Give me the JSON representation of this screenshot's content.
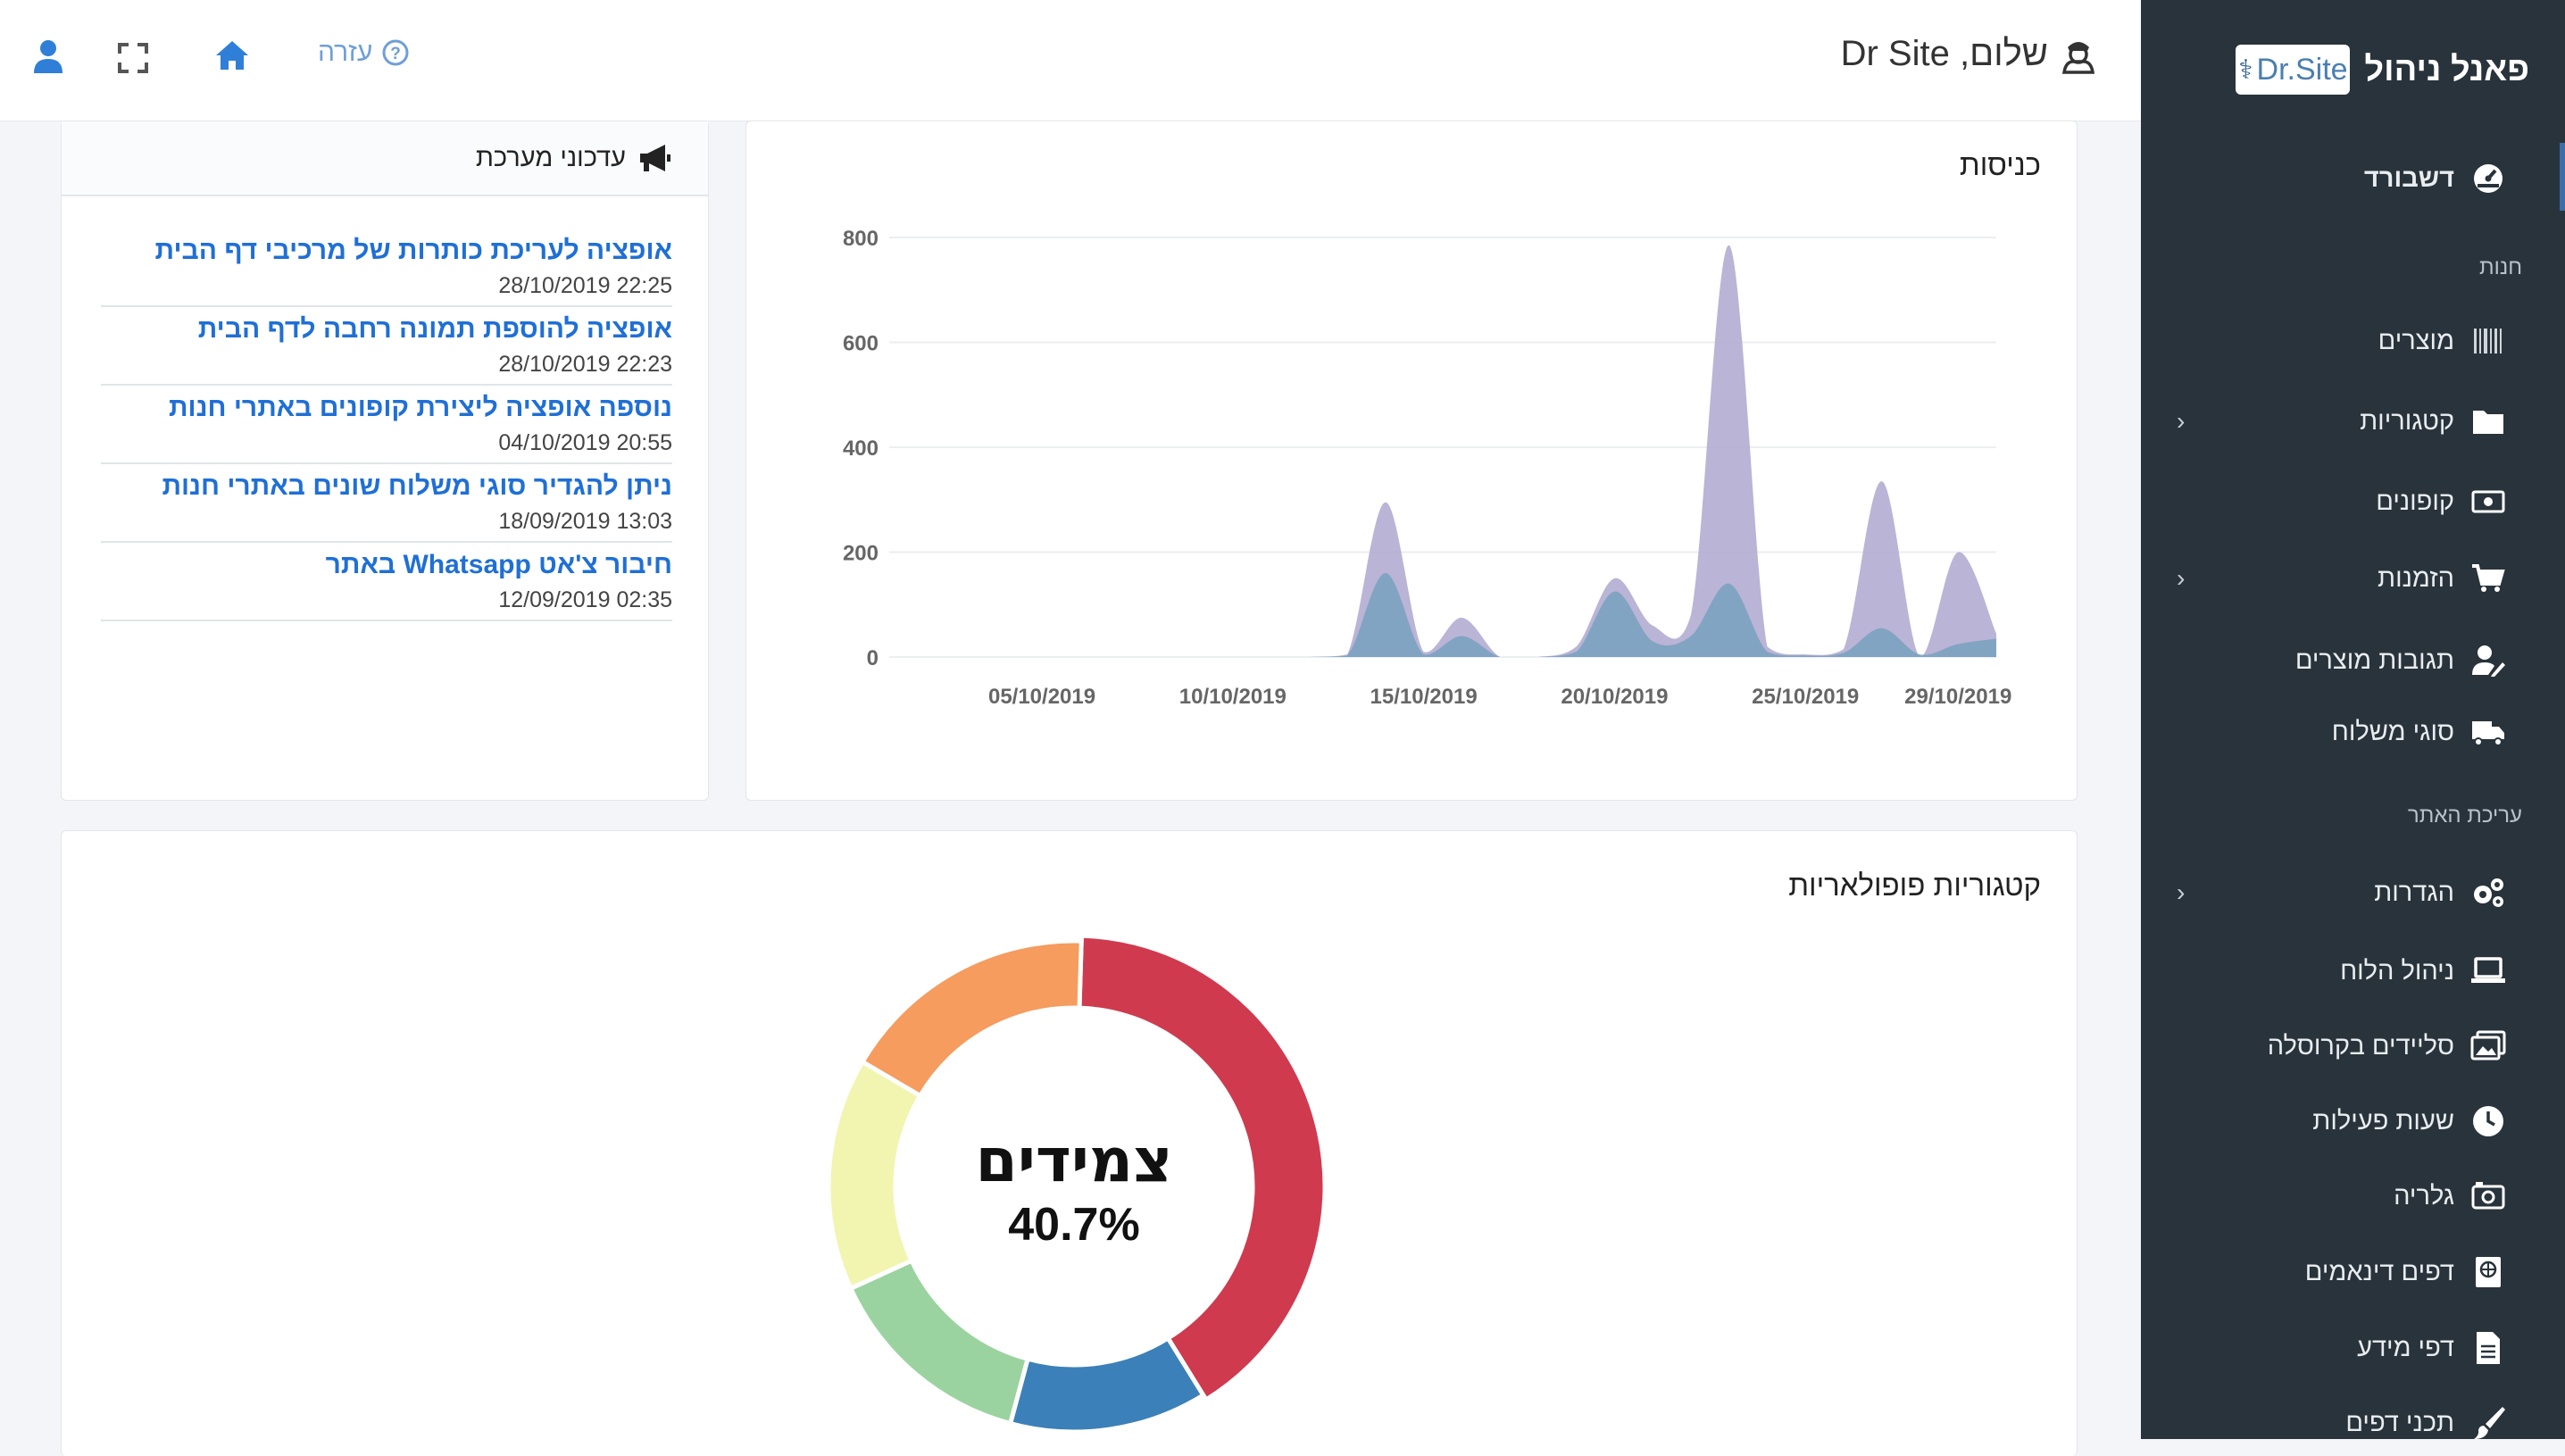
{
  "sidebar": {
    "brand_title": "פאנל ניהול",
    "logo_text": "Dr.Site",
    "items": [
      {
        "key": "dashboard",
        "label": "דשבורד",
        "icon": "speedometer-icon",
        "chevron": false
      },
      {
        "key": "section-store",
        "label": "חנות",
        "section": true
      },
      {
        "key": "products",
        "label": "מוצרים",
        "icon": "barcode-icon",
        "chevron": false
      },
      {
        "key": "categories",
        "label": "קטגוריות",
        "icon": "folder-icon",
        "chevron": true
      },
      {
        "key": "coupons",
        "label": "קופונים",
        "icon": "money-bill-icon",
        "chevron": false
      },
      {
        "key": "orders",
        "label": "הזמנות",
        "icon": "cart-icon",
        "chevron": true
      },
      {
        "key": "reviews",
        "label": "תגובות מוצרים",
        "icon": "user-edit-icon",
        "chevron": false
      },
      {
        "key": "shipping",
        "label": "סוגי משלוח",
        "icon": "truck-icon",
        "chevron": false
      },
      {
        "key": "section-site",
        "label": "עריכת האתר",
        "section": true
      },
      {
        "key": "settings",
        "label": "הגדרות",
        "icon": "gears-icon",
        "chevron": true
      },
      {
        "key": "board",
        "label": "ניהול הלוח",
        "icon": "laptop-icon",
        "chevron": false
      },
      {
        "key": "slides",
        "label": "סליידים בקרוסלה",
        "icon": "images-icon",
        "chevron": false
      },
      {
        "key": "hours",
        "label": "שעות פעילות",
        "icon": "clock-icon",
        "chevron": false
      },
      {
        "key": "gallery",
        "label": "גלריה",
        "icon": "camera-icon",
        "chevron": false
      },
      {
        "key": "dynamic",
        "label": "דפים דינאמים",
        "icon": "globe-book-icon",
        "chevron": false
      },
      {
        "key": "info",
        "label": "דפי מידע",
        "icon": "file-text-icon",
        "chevron": false
      },
      {
        "key": "designs",
        "label": "תכני דפים",
        "icon": "paint-brush-icon",
        "chevron": false
      }
    ]
  },
  "topbar": {
    "greeting": "שלום, Dr Site",
    "help_label": "עזרה"
  },
  "updates": {
    "title": "עדכוני מערכת",
    "items": [
      {
        "title": "אופציה לעריכת כותרות של מרכיבי דף הבית",
        "date": "22:25 28/10/2019"
      },
      {
        "title": "אופציה להוספת תמונה רחבה לדף הבית",
        "date": "22:23 28/10/2019"
      },
      {
        "title": "נוספה אופציה ליצירת קופונים באתרי חנות",
        "date": "20:55 04/10/2019"
      },
      {
        "title": "ניתן להגדיר סוגי משלוח שונים באתרי חנות",
        "date": "13:03 18/09/2019"
      },
      {
        "title": "חיבור צ'אט Whatsapp באתר",
        "date": "02:35 12/09/2019"
      }
    ]
  },
  "chart_data": [
    {
      "type": "area",
      "title": "כניסות",
      "x_start": "01/10/2019",
      "x": [
        "01/10",
        "02/10",
        "03/10",
        "04/10",
        "05/10",
        "06/10",
        "07/10",
        "08/10",
        "09/10",
        "10/10",
        "11/10",
        "12/10",
        "13/10",
        "14/10",
        "15/10",
        "16/10",
        "17/10",
        "18/10",
        "19/10",
        "20/10",
        "21/10",
        "22/10",
        "23/10",
        "24/10",
        "25/10",
        "26/10",
        "27/10",
        "28/10",
        "29/10",
        "30/10"
      ],
      "xticks": [
        "05/10/2019",
        "10/10/2019",
        "15/10/2019",
        "20/10/2019",
        "25/10/2019",
        "29/10/2019"
      ],
      "ylim": [
        0,
        800
      ],
      "yticks": [
        0,
        200,
        400,
        600,
        800
      ],
      "series": [
        {
          "color": "#b3acd2",
          "values": [
            0,
            0,
            0,
            0,
            0,
            0,
            0,
            0,
            0,
            0,
            0,
            0,
            5,
            295,
            10,
            75,
            0,
            0,
            20,
            150,
            60,
            80,
            785,
            20,
            5,
            15,
            335,
            0,
            200,
            45
          ]
        },
        {
          "color": "#7ba2c0",
          "values": [
            0,
            0,
            0,
            0,
            0,
            0,
            0,
            0,
            0,
            0,
            0,
            0,
            3,
            160,
            5,
            40,
            0,
            0,
            10,
            125,
            30,
            40,
            140,
            10,
            3,
            8,
            55,
            5,
            25,
            35
          ]
        }
      ]
    },
    {
      "type": "pie",
      "title": "קטגוריות פופולאריות",
      "center_label": "צמידים",
      "center_value": "40.7%",
      "slices": [
        {
          "value": 40.7,
          "color": "#cf3a4f"
        },
        {
          "value": 13.0,
          "color": "#3b80b9"
        },
        {
          "value": 14.0,
          "color": "#9bd3a0"
        },
        {
          "value": 15.3,
          "color": "#f1f5b0"
        },
        {
          "value": 17.0,
          "color": "#f59c5e"
        }
      ]
    }
  ]
}
